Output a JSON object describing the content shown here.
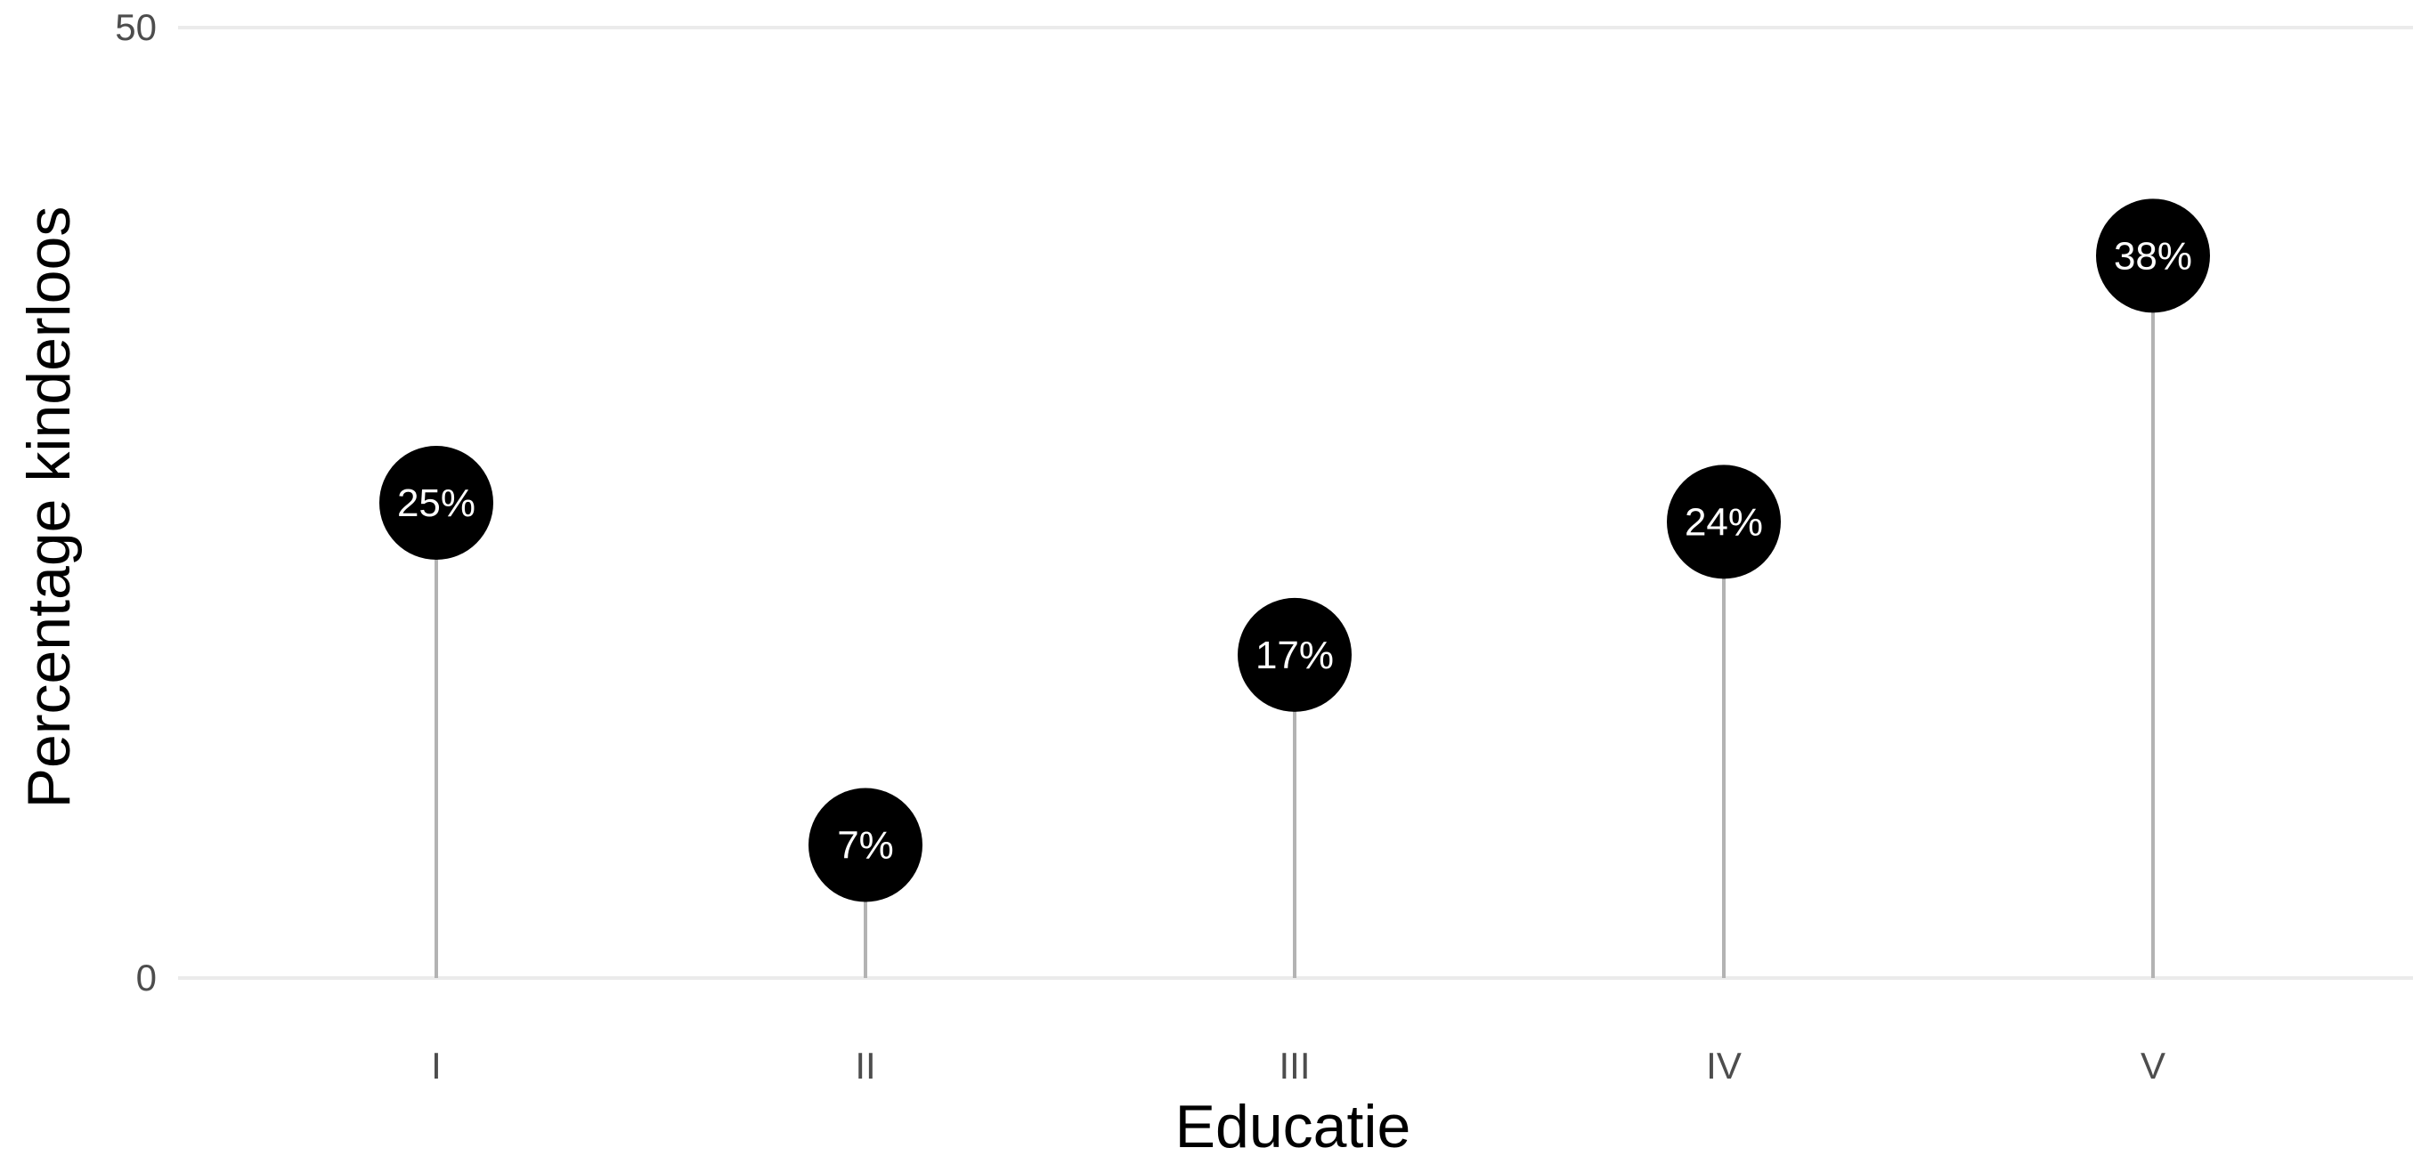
{
  "chart_data": {
    "type": "lollipop",
    "categories": [
      "I",
      "II",
      "III",
      "IV",
      "V"
    ],
    "values": [
      25,
      7,
      17,
      24,
      38
    ],
    "data_labels": [
      "25%",
      "7%",
      "17%",
      "24%",
      "38%"
    ],
    "xlabel": "Educatie",
    "ylabel": "Percentage kinderloos",
    "ylim": [
      0,
      50
    ],
    "yticks": [
      0,
      50
    ],
    "ytick_labels": [
      "0",
      "50"
    ],
    "grid": "horizontal major at y ticks",
    "colors": {
      "marker": "#000000",
      "stem": "#b3b3b3",
      "grid": "#ebebeb",
      "label_text": "#ffffff",
      "tick_text": "#4d4d4d"
    }
  }
}
